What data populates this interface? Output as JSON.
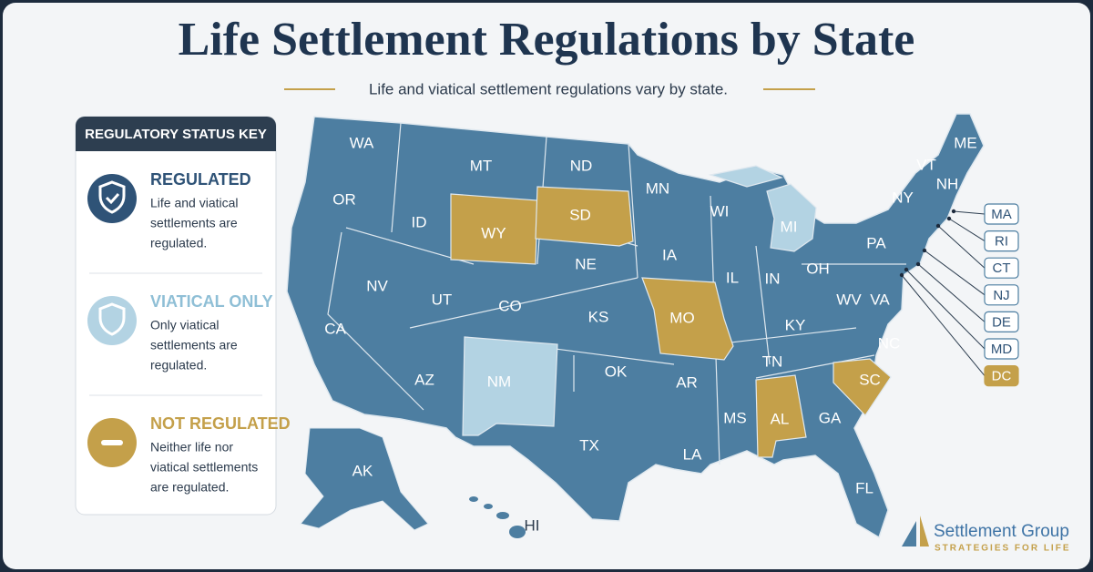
{
  "header": {
    "title": "Life Settlement Regulations by State",
    "subtitle": "Life and viatical settlement regulations vary by state."
  },
  "legend": {
    "title": "REGULATORY STATUS KEY",
    "items": [
      {
        "label": "REGULATED",
        "color": "#4d7ea1",
        "description": [
          "Life and viatical",
          "settlements are",
          "regulated."
        ]
      },
      {
        "label": "VIATICAL ONLY",
        "color": "#b3d3e3",
        "description": [
          "Only viatical",
          "settlements are",
          "regulated."
        ]
      },
      {
        "label": "NOT REGULATED",
        "color": "#c4a04a",
        "description": [
          "Neither life nor",
          "viatical settlements",
          "are regulated."
        ]
      }
    ]
  },
  "states": [
    {
      "label": "WA",
      "color": "#4d7ea1"
    },
    {
      "label": "OR",
      "color": "#4d7ea1"
    },
    {
      "label": "CA",
      "color": "#4d7ea1"
    },
    {
      "label": "NV",
      "color": "#4d7ea1"
    },
    {
      "label": "ID",
      "color": "#4d7ea1"
    },
    {
      "label": "MT",
      "color": "#4d7ea1"
    },
    {
      "label": "WY",
      "color": "#c4a04a"
    },
    {
      "label": "UT",
      "color": "#4d7ea1"
    },
    {
      "label": "CO",
      "color": "#4d7ea1"
    },
    {
      "label": "AZ",
      "color": "#4d7ea1"
    },
    {
      "label": "NM",
      "color": "#b3d3e3"
    },
    {
      "label": "ND",
      "color": "#4d7ea1"
    },
    {
      "label": "SD",
      "color": "#c4a04a"
    },
    {
      "label": "NE",
      "color": "#4d7ea1"
    },
    {
      "label": "KS",
      "color": "#4d7ea1"
    },
    {
      "label": "OK",
      "color": "#4d7ea1"
    },
    {
      "label": "TX",
      "color": "#4d7ea1"
    },
    {
      "label": "MN",
      "color": "#4d7ea1"
    },
    {
      "label": "IA",
      "color": "#4d7ea1"
    },
    {
      "label": "MO",
      "color": "#c4a04a"
    },
    {
      "label": "AR",
      "color": "#4d7ea1"
    },
    {
      "label": "LA",
      "color": "#4d7ea1"
    },
    {
      "label": "WI",
      "color": "#4d7ea1"
    },
    {
      "label": "IL",
      "color": "#4d7ea1"
    },
    {
      "label": "MI",
      "color": "#b3d3e3"
    },
    {
      "label": "IN",
      "color": "#4d7ea1"
    },
    {
      "label": "OH",
      "color": "#4d7ea1"
    },
    {
      "label": "KY",
      "color": "#4d7ea1"
    },
    {
      "label": "TN",
      "color": "#4d7ea1"
    },
    {
      "label": "MS",
      "color": "#4d7ea1"
    },
    {
      "label": "AL",
      "color": "#c4a04a"
    },
    {
      "label": "GA",
      "color": "#4d7ea1"
    },
    {
      "label": "FL",
      "color": "#4d7ea1"
    },
    {
      "label": "SC",
      "color": "#c4a04a"
    },
    {
      "label": "NC",
      "color": "#4d7ea1"
    },
    {
      "label": "VA",
      "color": "#4d7ea1"
    },
    {
      "label": "WV",
      "color": "#4d7ea1"
    },
    {
      "label": "PA",
      "color": "#4d7ea1"
    },
    {
      "label": "NY",
      "color": "#4d7ea1"
    },
    {
      "label": "VT",
      "color": "#4d7ea1"
    },
    {
      "label": "NH",
      "color": "#4d7ea1"
    },
    {
      "label": "ME",
      "color": "#4d7ea1"
    },
    {
      "label": "AK",
      "color": "#4d7ea1"
    },
    {
      "label": "HI",
      "color": "#4d7ea1"
    }
  ],
  "callouts": [
    {
      "label": "MA",
      "color": "#4d7ea1"
    },
    {
      "label": "RI",
      "color": "#4d7ea1"
    },
    {
      "label": "CT",
      "color": "#4d7ea1"
    },
    {
      "label": "NJ",
      "color": "#4d7ea1"
    },
    {
      "label": "DE",
      "color": "#4d7ea1"
    },
    {
      "label": "MD",
      "color": "#4d7ea1"
    },
    {
      "label": "DC",
      "color": "#c4a04a"
    }
  ],
  "logo": {
    "name": "Settlement Group",
    "tagline": "STRATEGIES FOR LIFE"
  }
}
